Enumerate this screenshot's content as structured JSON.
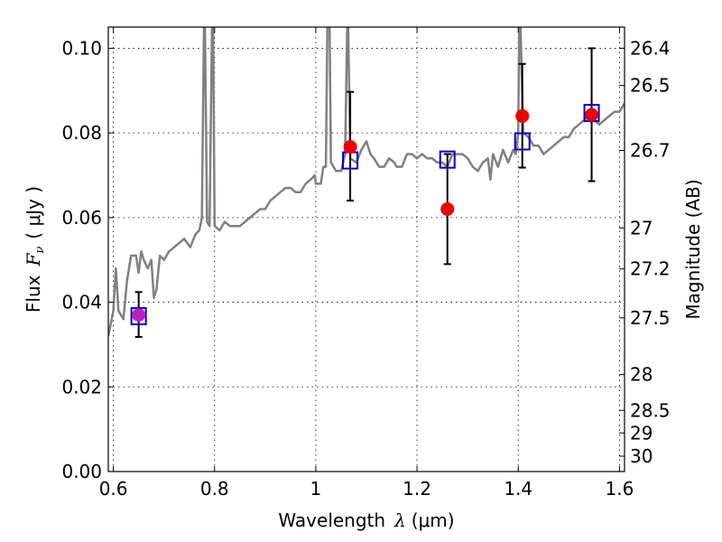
{
  "chart_data": {
    "type": "scatter",
    "xlabel": "Wavelength",
    "xlabel_symbol": "λ",
    "xlabel_unit": "(μm)",
    "ylabel": "Flux",
    "ylabel_symbol": "F",
    "ylabel_symbol_sub": "ν",
    "ylabel_unit": "( μJy )",
    "y2label": "Magnitude (AB)",
    "xlim": [
      0.59,
      1.61
    ],
    "ylim": [
      0.0,
      0.105
    ],
    "grid": true,
    "x_ticks": [
      {
        "value": 0.6,
        "label": "0.6"
      },
      {
        "value": 0.8,
        "label": "0.8"
      },
      {
        "value": 1.0,
        "label": "1"
      },
      {
        "value": 1.2,
        "label": "1.2"
      },
      {
        "value": 1.4,
        "label": "1.4"
      },
      {
        "value": 1.6,
        "label": "1.6"
      }
    ],
    "y_ticks": [
      {
        "value": 0.0,
        "label": "0.00"
      },
      {
        "value": 0.02,
        "label": "0.02"
      },
      {
        "value": 0.04,
        "label": "0.04"
      },
      {
        "value": 0.06,
        "label": "0.06"
      },
      {
        "value": 0.08,
        "label": "0.08"
      },
      {
        "value": 0.1,
        "label": "0.10"
      }
    ],
    "y2_ticks": [
      {
        "value": 26.4,
        "label": "26.4"
      },
      {
        "value": 26.5,
        "label": "26.5"
      },
      {
        "value": 26.7,
        "label": "26.7"
      },
      {
        "value": 27.0,
        "label": "27"
      },
      {
        "value": 27.2,
        "label": "27.2"
      },
      {
        "value": 27.5,
        "label": "27.5"
      },
      {
        "value": 28.0,
        "label": "28"
      },
      {
        "value": 28.5,
        "label": "28.5"
      },
      {
        "value": 29.0,
        "label": "29"
      },
      {
        "value": 30.0,
        "label": "30"
      }
    ],
    "series": [
      {
        "kind": "line",
        "color": "#808080",
        "points": [
          [
            0.59,
            0.032
          ],
          [
            0.6,
            0.038
          ],
          [
            0.605,
            0.048
          ],
          [
            0.61,
            0.038
          ],
          [
            0.62,
            0.036
          ],
          [
            0.627,
            0.045
          ],
          [
            0.635,
            0.051
          ],
          [
            0.645,
            0.051
          ],
          [
            0.65,
            0.047
          ],
          [
            0.655,
            0.052
          ],
          [
            0.66,
            0.05
          ],
          [
            0.668,
            0.048
          ],
          [
            0.675,
            0.05
          ],
          [
            0.68,
            0.041
          ],
          [
            0.685,
            0.043
          ],
          [
            0.692,
            0.051
          ],
          [
            0.7,
            0.05
          ],
          [
            0.71,
            0.052
          ],
          [
            0.72,
            0.053
          ],
          [
            0.73,
            0.054
          ],
          [
            0.74,
            0.055
          ],
          [
            0.752,
            0.053
          ],
          [
            0.762,
            0.056
          ],
          [
            0.77,
            0.057
          ],
          [
            0.775,
            0.06
          ],
          [
            0.779,
            0.105
          ],
          [
            0.781,
            0.105
          ],
          [
            0.785,
            0.059
          ],
          [
            0.79,
            0.058
          ],
          [
            0.795,
            0.107
          ],
          [
            0.797,
            0.107
          ],
          [
            0.8,
            0.058
          ],
          [
            0.81,
            0.057
          ],
          [
            0.82,
            0.059
          ],
          [
            0.83,
            0.058
          ],
          [
            0.84,
            0.058
          ],
          [
            0.85,
            0.058
          ],
          [
            0.86,
            0.059
          ],
          [
            0.87,
            0.06
          ],
          [
            0.88,
            0.061
          ],
          [
            0.89,
            0.062
          ],
          [
            0.9,
            0.062
          ],
          [
            0.91,
            0.064
          ],
          [
            0.92,
            0.065
          ],
          [
            0.93,
            0.066
          ],
          [
            0.94,
            0.067
          ],
          [
            0.95,
            0.067
          ],
          [
            0.96,
            0.066
          ],
          [
            0.97,
            0.066
          ],
          [
            0.98,
            0.068
          ],
          [
            0.99,
            0.069
          ],
          [
            0.998,
            0.07
          ],
          [
            1.0,
            0.068
          ],
          [
            1.01,
            0.068
          ],
          [
            1.015,
            0.072
          ],
          [
            1.02,
            0.072
          ],
          [
            1.023,
            0.107
          ],
          [
            1.027,
            0.107
          ],
          [
            1.03,
            0.073
          ],
          [
            1.04,
            0.071
          ],
          [
            1.05,
            0.071
          ],
          [
            1.058,
            0.075
          ],
          [
            1.062,
            0.105
          ],
          [
            1.064,
            0.105
          ],
          [
            1.068,
            0.074
          ],
          [
            1.08,
            0.073
          ],
          [
            1.09,
            0.076
          ],
          [
            1.1,
            0.078
          ],
          [
            1.108,
            0.075
          ],
          [
            1.115,
            0.074
          ],
          [
            1.125,
            0.072
          ],
          [
            1.135,
            0.072
          ],
          [
            1.145,
            0.074
          ],
          [
            1.155,
            0.073
          ],
          [
            1.16,
            0.072
          ],
          [
            1.17,
            0.072
          ],
          [
            1.18,
            0.075
          ],
          [
            1.19,
            0.075
          ],
          [
            1.2,
            0.074
          ],
          [
            1.21,
            0.075
          ],
          [
            1.22,
            0.074
          ],
          [
            1.23,
            0.074
          ],
          [
            1.24,
            0.073
          ],
          [
            1.25,
            0.073
          ],
          [
            1.26,
            0.072
          ],
          [
            1.27,
            0.075
          ],
          [
            1.28,
            0.075
          ],
          [
            1.29,
            0.075
          ],
          [
            1.3,
            0.074
          ],
          [
            1.31,
            0.072
          ],
          [
            1.32,
            0.071
          ],
          [
            1.33,
            0.073
          ],
          [
            1.34,
            0.074
          ],
          [
            1.345,
            0.069
          ],
          [
            1.35,
            0.075
          ],
          [
            1.36,
            0.072
          ],
          [
            1.37,
            0.076
          ],
          [
            1.38,
            0.073
          ],
          [
            1.39,
            0.076
          ],
          [
            1.395,
            0.075
          ],
          [
            1.4,
            0.08
          ],
          [
            1.402,
            0.107
          ],
          [
            1.404,
            0.107
          ],
          [
            1.41,
            0.08
          ],
          [
            1.42,
            0.079
          ],
          [
            1.43,
            0.077
          ],
          [
            1.44,
            0.077
          ],
          [
            1.45,
            0.075
          ],
          [
            1.46,
            0.076
          ],
          [
            1.47,
            0.077
          ],
          [
            1.48,
            0.078
          ],
          [
            1.49,
            0.079
          ],
          [
            1.5,
            0.079
          ],
          [
            1.51,
            0.081
          ],
          [
            1.52,
            0.082
          ],
          [
            1.53,
            0.083
          ],
          [
            1.54,
            0.084
          ],
          [
            1.55,
            0.083
          ],
          [
            1.56,
            0.082
          ],
          [
            1.57,
            0.083
          ],
          [
            1.58,
            0.084
          ],
          [
            1.59,
            0.085
          ],
          [
            1.6,
            0.085
          ],
          [
            1.61,
            0.087
          ]
        ]
      },
      {
        "kind": "markers",
        "marker": "square-open",
        "color": "#0000cc",
        "points": [
          [
            0.65,
            0.0367
          ],
          [
            1.068,
            0.0735
          ],
          [
            1.26,
            0.0737
          ],
          [
            1.408,
            0.078
          ],
          [
            1.545,
            0.0847
          ]
        ]
      },
      {
        "kind": "markers",
        "marker": "circle-filled",
        "color": "#ee0000",
        "points": [
          [
            1.068,
            0.0767
          ],
          [
            1.26,
            0.062
          ],
          [
            1.408,
            0.084
          ],
          [
            1.545,
            0.0843
          ]
        ]
      },
      {
        "kind": "markers",
        "marker": "circle-filled",
        "color": "#bb22bb",
        "points": [
          [
            0.65,
            0.037
          ]
        ]
      },
      {
        "kind": "errorbars",
        "color": "#000000",
        "points": [
          {
            "x": 0.65,
            "low": 0.0318,
            "high": 0.0424
          },
          {
            "x": 1.068,
            "low": 0.064,
            "high": 0.0897
          },
          {
            "x": 1.26,
            "low": 0.049,
            "high": 0.075
          },
          {
            "x": 1.408,
            "low": 0.0718,
            "high": 0.0963
          },
          {
            "x": 1.545,
            "low": 0.0686,
            "high": 0.1
          }
        ]
      }
    ]
  }
}
